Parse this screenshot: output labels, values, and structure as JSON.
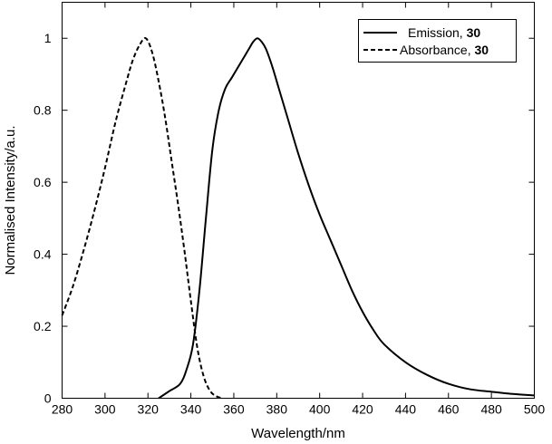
{
  "chart_data": {
    "type": "line",
    "xlabel": "Wavelength/nm",
    "ylabel": "Normalised Intensity/a.u.",
    "xlim": [
      280,
      500
    ],
    "ylim": [
      0,
      1.1
    ],
    "xticks": [
      280,
      300,
      320,
      340,
      360,
      380,
      400,
      420,
      440,
      460,
      480,
      500
    ],
    "yticks": [
      0,
      0.2,
      0.4,
      0.6,
      0.8,
      1
    ],
    "ytick_labels": [
      "0",
      "0.2",
      "0.4",
      "0.6",
      "0.8",
      "1"
    ],
    "grid": false,
    "legend_position": "top-right",
    "series": [
      {
        "name": "Emission,",
        "name_bold": "30",
        "style": "solid",
        "x": [
          325,
          330,
          335,
          338,
          341,
          344,
          347,
          350,
          353,
          356,
          359,
          362,
          365,
          367,
          369,
          371,
          373,
          375,
          378,
          381,
          385,
          390,
          395,
          400,
          405,
          410,
          415,
          420,
          425,
          430,
          440,
          450,
          460,
          470,
          480,
          490,
          500
        ],
        "y": [
          0.0,
          0.02,
          0.04,
          0.08,
          0.15,
          0.3,
          0.5,
          0.69,
          0.8,
          0.86,
          0.89,
          0.92,
          0.95,
          0.97,
          0.99,
          1.0,
          0.99,
          0.97,
          0.92,
          0.86,
          0.78,
          0.68,
          0.59,
          0.51,
          0.44,
          0.37,
          0.3,
          0.24,
          0.19,
          0.15,
          0.1,
          0.065,
          0.04,
          0.025,
          0.018,
          0.012,
          0.008
        ]
      },
      {
        "name": "Absorbance,",
        "name_bold": "30",
        "style": "dashed",
        "x": [
          280,
          285,
          290,
          295,
          300,
          305,
          310,
          313,
          316,
          319,
          322,
          325,
          328,
          331,
          334,
          337,
          340,
          343,
          346,
          349,
          352,
          355
        ],
        "y": [
          0.23,
          0.31,
          0.41,
          0.52,
          0.64,
          0.77,
          0.88,
          0.94,
          0.98,
          1.0,
          0.96,
          0.88,
          0.78,
          0.66,
          0.54,
          0.41,
          0.27,
          0.14,
          0.06,
          0.02,
          0.005,
          0.0
        ]
      }
    ]
  }
}
